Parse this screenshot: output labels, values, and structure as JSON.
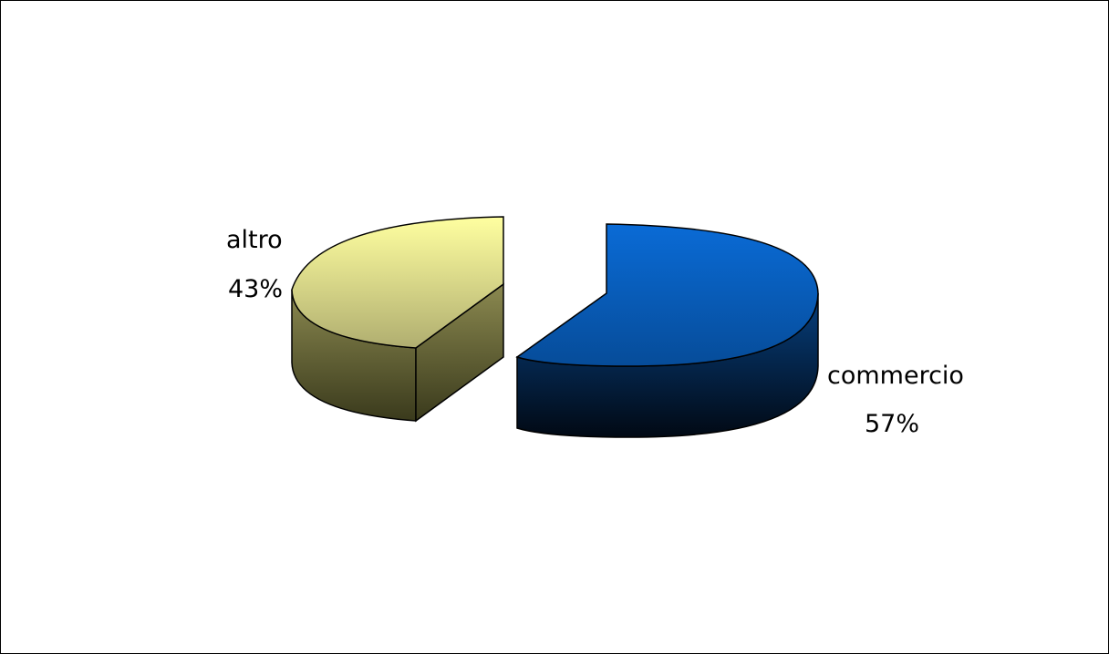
{
  "chart_data": {
    "type": "pie",
    "title": "",
    "categories": [
      "altro",
      "commercio"
    ],
    "values": [
      43,
      57
    ],
    "labels": [
      {
        "category": "altro",
        "percent": "43%"
      },
      {
        "category": "commercio",
        "percent": "57%"
      }
    ],
    "colors": {
      "altro_top_light": "#ffffa0",
      "altro_top_dark": "#b0ae70",
      "altro_side_light": "#8b8950",
      "altro_side_dark": "#3a3a1c",
      "commercio_top_light": "#0a6bd6",
      "commercio_top_dark": "#064c99",
      "commercio_side_light": "#07407f",
      "commercio_side_dark": "#010914"
    },
    "style": "3d-exploded",
    "legend": "none"
  }
}
